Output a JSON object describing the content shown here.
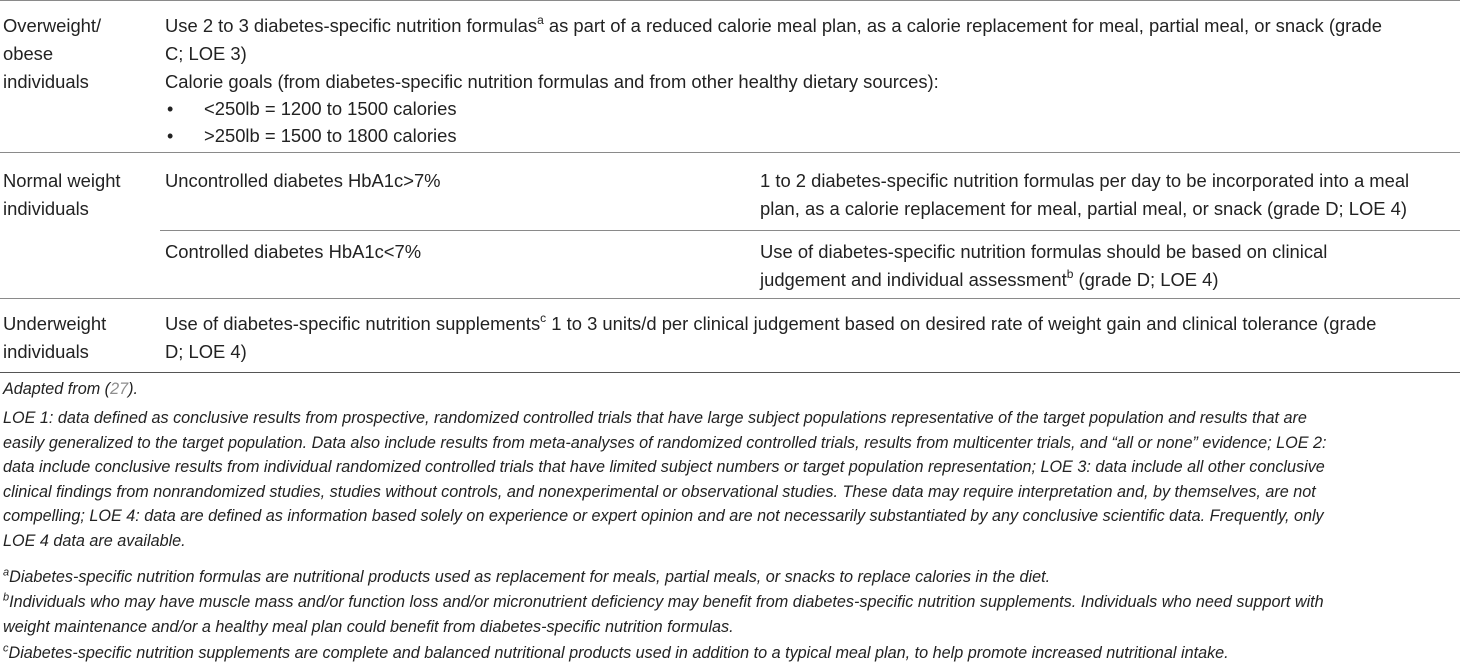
{
  "rows": {
    "overweight": {
      "label": [
        "Overweight/",
        "obese",
        "individuals"
      ],
      "rec_line1_pre": "Use 2 to 3 diabetes-specific nutrition formulas",
      "rec_line1_sup": "a",
      "rec_line1_post": " as part of a reduced calorie meal plan, as a calorie replacement for meal, partial meal, or snack (grade",
      "rec_line2": "C; LOE 3)",
      "calorie_intro": "Calorie goals (from diabetes-specific nutrition formulas and from other healthy dietary sources):",
      "bullet_symbol": "•",
      "bullets": [
        "<250lb = 1200 to 1500 calories",
        ">250lb = 1500 to 1800 calories"
      ]
    },
    "normal": {
      "label": [
        "Normal weight",
        "individuals"
      ],
      "sub1_condition": "Uncontrolled diabetes HbA1c>7%",
      "sub1_rec": [
        "1 to 2 diabetes-specific nutrition formulas per day to be incorporated into a meal",
        "plan, as a calorie replacement for meal, partial meal, or snack (grade D; LOE 4)"
      ],
      "sub2_condition": "Controlled diabetes HbA1c<7%",
      "sub2_rec_line1": "Use of diabetes-specific nutrition formulas should be based on clinical",
      "sub2_rec_line2_pre": "judgement and individual assessment",
      "sub2_rec_line2_sup": "b",
      "sub2_rec_line2_post": " (grade D; LOE 4)"
    },
    "underweight": {
      "label": [
        "Underweight",
        "individuals"
      ],
      "rec_line1_pre": "Use of diabetes-specific nutrition supplements",
      "rec_line1_sup": "c",
      "rec_line1_post": " 1 to 3 units/d per clinical judgement based on desired rate of weight gain and clinical tolerance (grade",
      "rec_line2": "D; LOE 4)"
    }
  },
  "footnotes": {
    "adapted_pre": "Adapted from (",
    "adapted_ref": "27",
    "adapted_post": ").",
    "loe_lines": [
      "LOE 1: data defined as conclusive results from prospective, randomized controlled trials that have large subject populations representative of the target population and results that are",
      "easily generalized to the target population. Data also include results from meta-analyses of randomized controlled trials, results from multicenter trials, and “all or none” evidence; LOE 2:",
      "data include conclusive results from individual randomized controlled trials that have limited subject numbers or target population representation; LOE 3: data include all other conclusive",
      "clinical findings from nonrandomized studies, studies without controls, and nonexperimental or observational studies. These data may require interpretation and, by themselves, are not",
      "compelling; LOE 4: data are defined as information based solely on experience or expert opinion and are not necessarily substantiated by any conclusive scientific data. Frequently, only",
      "LOE 4 data are available."
    ],
    "a_sup": "a",
    "a_text": "Diabetes-specific nutrition formulas are nutritional products used as replacement for meals, partial meals, or snacks to replace calories in the diet.",
    "b_sup": "b",
    "b_lines": [
      "Individuals who may have muscle mass and/or function loss and/or micronutrient deficiency may benefit from diabetes-specific nutrition supplements. Individuals who need support with",
      "weight maintenance and/or a healthy meal plan could benefit from diabetes-specific nutrition formulas."
    ],
    "c_sup": "c",
    "c_text": "Diabetes-specific nutrition supplements are complete and balanced nutritional products used in addition to a typical meal plan, to help promote increased nutritional intake."
  }
}
